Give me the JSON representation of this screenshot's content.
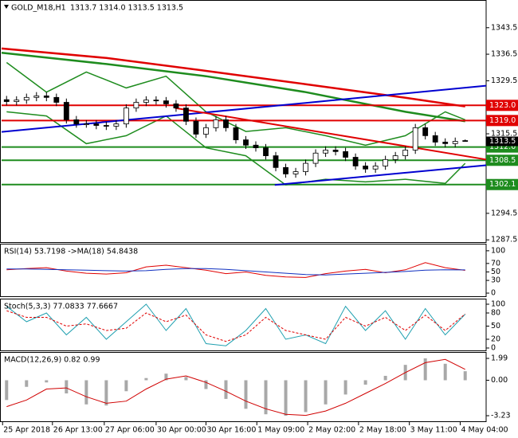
{
  "chart_data": [
    {
      "type": "candlestick",
      "title": "GOLD_M18,H1",
      "quote": "1313.7 1314.0 1313.5 1313.5",
      "xlim": [
        0,
        48.6
      ],
      "xticks": [
        {
          "value": 0.1,
          "label": "25 Apr 2018"
        },
        {
          "value": 5.1,
          "label": "26 Apr 13:00"
        },
        {
          "value": 10.3,
          "label": "27 Apr 06:00"
        },
        {
          "value": 15.5,
          "label": "30 Apr 00:00"
        },
        {
          "value": 20.5,
          "label": "30 Apr 16:00"
        },
        {
          "value": 25.6,
          "label": "1 May 09:00"
        },
        {
          "value": 30.7,
          "label": "2 May 02:00"
        },
        {
          "value": 35.8,
          "label": "2 May 18:00"
        },
        {
          "value": 40.9,
          "label": "3 May 11:00"
        },
        {
          "value": 46.0,
          "label": "4 May 04:00"
        }
      ],
      "ylim": [
        1286.7,
        1350.6
      ],
      "yticks": [
        1343.5,
        1336.5,
        1329.5,
        1315.5,
        1294.5,
        1287.5
      ],
      "open": [
        1324.5,
        1324.0,
        1324.4,
        1325.1,
        1325.5,
        1325.1,
        1323.8,
        1319.2,
        1318.1,
        1318.1,
        1317.7,
        1317.5,
        1318.1,
        1322.3,
        1323.8,
        1324.4,
        1324.2,
        1323.4,
        1322.3,
        1318.8,
        1315.4,
        1317.1,
        1319.2,
        1317.1,
        1313.9,
        1312.5,
        1311.8,
        1309.7,
        1306.6,
        1304.9,
        1305.5,
        1307.7,
        1310.4,
        1311.2,
        1310.8,
        1309.3,
        1307.0,
        1306.2,
        1307.0,
        1308.7,
        1309.7,
        1311.2,
        1317.1,
        1315.0,
        1313.3,
        1312.9,
        1313.7
      ],
      "high": [
        1325.5,
        1325.4,
        1326.1,
        1326.5,
        1326.5,
        1326.1,
        1324.8,
        1320.2,
        1319.1,
        1319.1,
        1318.7,
        1319.1,
        1323.3,
        1324.8,
        1325.4,
        1325.4,
        1325.2,
        1324.4,
        1323.3,
        1319.8,
        1318.1,
        1320.2,
        1320.2,
        1318.1,
        1314.9,
        1313.5,
        1312.8,
        1310.7,
        1307.6,
        1306.5,
        1308.7,
        1311.4,
        1312.2,
        1312.2,
        1311.8,
        1310.3,
        1308.0,
        1308.0,
        1309.7,
        1310.7,
        1312.2,
        1318.1,
        1318.1,
        1316.0,
        1314.3,
        1314.5,
        1314.0
      ],
      "low": [
        1323.0,
        1323.0,
        1323.4,
        1324.1,
        1324.1,
        1322.8,
        1318.2,
        1317.1,
        1317.1,
        1316.7,
        1316.5,
        1316.5,
        1317.1,
        1321.3,
        1322.8,
        1323.2,
        1322.4,
        1321.3,
        1317.8,
        1314.4,
        1314.4,
        1316.1,
        1316.1,
        1312.9,
        1311.5,
        1310.8,
        1308.7,
        1305.6,
        1303.9,
        1303.9,
        1304.5,
        1306.7,
        1309.4,
        1309.8,
        1308.3,
        1306.0,
        1305.2,
        1305.2,
        1306.0,
        1307.7,
        1308.7,
        1310.2,
        1314.0,
        1312.3,
        1311.9,
        1311.9,
        1313.5
      ],
      "close": [
        1324.0,
        1324.4,
        1325.1,
        1325.5,
        1325.1,
        1323.8,
        1319.2,
        1318.1,
        1318.1,
        1317.7,
        1317.5,
        1318.1,
        1322.3,
        1323.8,
        1324.4,
        1324.2,
        1323.4,
        1322.3,
        1318.8,
        1315.4,
        1317.1,
        1319.2,
        1317.1,
        1313.9,
        1312.5,
        1311.8,
        1309.7,
        1306.6,
        1304.9,
        1305.5,
        1307.7,
        1310.4,
        1311.2,
        1310.8,
        1309.3,
        1307.0,
        1306.2,
        1307.0,
        1308.7,
        1309.7,
        1311.2,
        1317.1,
        1315.0,
        1313.3,
        1312.9,
        1313.5,
        1313.5
      ],
      "overlays": [
        {
          "color": "#e00000",
          "width": 2.5,
          "x": [
            0,
            10.5,
            20.5,
            30.5,
            40.5,
            46.5
          ],
          "values": [
            1338.0,
            1335.5,
            1332.1,
            1328.6,
            1325.0,
            1322.7
          ]
        },
        {
          "color": "#1e8c1e",
          "width": 2.5,
          "x": [
            0,
            10.5,
            20.5,
            30.5,
            40.5,
            46.5
          ],
          "values": [
            1336.9,
            1333.9,
            1330.7,
            1326.5,
            1321.3,
            1318.8
          ]
        },
        {
          "color": "#1e8c1e",
          "width": 1.5,
          "x": [
            0.5,
            4.5,
            8.5,
            12.5,
            16.5,
            20.5,
            24.5,
            28.5,
            32.5,
            36.5,
            40.5,
            44.5,
            46.5
          ],
          "values": [
            1334.3,
            1326.5,
            1331.8,
            1327.6,
            1330.7,
            1321.3,
            1316.1,
            1317.1,
            1315.0,
            1312.5,
            1315.0,
            1321.3,
            1319.2
          ]
        },
        {
          "color": "#1e8c1e",
          "width": 1.5,
          "x": [
            0.5,
            4.5,
            8.5,
            12.5,
            16.5,
            20.5,
            24.5,
            28.5,
            32.5,
            36.5,
            40.5,
            44.5,
            46.5
          ],
          "values": [
            1321.3,
            1320.2,
            1312.9,
            1315.0,
            1320.2,
            1311.8,
            1309.7,
            1302.0,
            1303.5,
            1302.8,
            1303.5,
            1302.4,
            1307.7
          ]
        }
      ],
      "trendlines": [
        {
          "color": "#0000d0",
          "x": [
            0,
            48.6
          ],
          "values": [
            1316.0,
            1328.2
          ]
        },
        {
          "color": "#0000d0",
          "x": [
            27.4,
            48.6
          ],
          "values": [
            1302.0,
            1307.2
          ]
        },
        {
          "color": "#e00000",
          "x": [
            17.4,
            48.6
          ],
          "values": [
            1322.3,
            1308.7
          ]
        }
      ],
      "levels": [
        {
          "value": 1323,
          "label": "1323.0",
          "color": "#e00000"
        },
        {
          "value": 1319,
          "label": "1319.0",
          "color": "#e00000"
        },
        {
          "value": 1312,
          "label": "1312.0",
          "color": "#1e8c1e"
        },
        {
          "value": 1308.5,
          "label": "1308.5",
          "color": "#1e8c1e"
        },
        {
          "value": 1302.1,
          "label": "1302.1",
          "color": "#1e8c1e"
        }
      ],
      "current_price": 1313.5
    },
    {
      "type": "line",
      "title": "RSI(14) 53.7198 ->MA(18) 54.8438",
      "x": [
        0.5,
        2.5,
        4.5,
        6.5,
        8.5,
        10.5,
        12.5,
        14.5,
        16.5,
        18.5,
        20.5,
        22.5,
        24.5,
        26.5,
        28.5,
        30.5,
        32.5,
        34.5,
        36.5,
        38.5,
        40.5,
        42.5,
        44.5,
        46.5
      ],
      "ylim": [
        -9.3,
        114.8
      ],
      "yticks": [
        100,
        70,
        50,
        30,
        0
      ],
      "series": [
        {
          "color": "#e00000",
          "values": [
            55,
            58,
            60,
            52,
            47,
            45,
            48,
            62,
            66,
            60,
            54,
            46,
            50,
            42,
            38,
            37,
            46,
            52,
            56,
            48,
            55,
            72,
            60,
            53.7198
          ]
        },
        {
          "color": "#1030c0",
          "values": [
            57,
            57,
            56,
            55,
            54,
            53,
            52,
            53,
            56,
            58,
            58,
            56,
            53,
            50,
            47,
            44,
            43,
            45,
            47,
            49,
            51,
            54,
            55,
            54.8438
          ]
        }
      ]
    },
    {
      "type": "line",
      "title": "Stoch(5,3,3) 77.0833 77.6667",
      "x": [
        0.5,
        2.5,
        4.5,
        6.5,
        8.5,
        10.5,
        12.5,
        14.5,
        16.5,
        18.5,
        20.5,
        22.5,
        24.5,
        26.5,
        28.5,
        30.5,
        32.5,
        34.5,
        36.5,
        38.5,
        40.5,
        42.5,
        44.5,
        46.5
      ],
      "ylim": [
        -7.3,
        110.9
      ],
      "yticks": [
        100,
        80,
        50,
        20,
        0
      ],
      "series": [
        {
          "color": "#20a0b0",
          "values": [
            95,
            60,
            80,
            30,
            70,
            20,
            60,
            100,
            40,
            90,
            10,
            5,
            40,
            90,
            20,
            30,
            10,
            95,
            40,
            85,
            20,
            90,
            30,
            77.0833
          ]
        },
        {
          "color": "#e00000",
          "dash": true,
          "values": [
            85,
            70,
            70,
            50,
            55,
            40,
            45,
            80,
            60,
            75,
            30,
            15,
            30,
            70,
            40,
            30,
            20,
            70,
            50,
            70,
            40,
            75,
            40,
            77.6667
          ]
        }
      ]
    },
    {
      "type": "macd",
      "title": "MACD(12,26,9) 0.82 0.99",
      "x": [
        0.5,
        2.5,
        4.5,
        6.5,
        8.5,
        10.5,
        12.5,
        14.5,
        16.5,
        18.5,
        20.5,
        22.5,
        24.5,
        26.5,
        28.5,
        30.5,
        32.5,
        34.5,
        36.5,
        38.5,
        40.5,
        42.5,
        44.5,
        46.5
      ],
      "ylim": [
        -3.81,
        2.5
      ],
      "yticks": [
        1.99,
        {
          "value": 0,
          "label": "0.00"
        },
        -3.23
      ],
      "series": [
        {
          "type": "bar",
          "color": "#a8a8a8",
          "values": [
            -1.8,
            -0.6,
            -0.2,
            -1.2,
            -2.2,
            -2.3,
            -1.0,
            0.2,
            0.6,
            0.3,
            -0.8,
            -1.7,
            -2.6,
            -3.1,
            -3.23,
            -2.9,
            -2.2,
            -1.3,
            -0.4,
            0.4,
            1.4,
            1.99,
            1.5,
            0.82
          ]
        },
        {
          "type": "line",
          "color": "#d00000",
          "values": [
            -2.4,
            -1.8,
            -0.8,
            -0.7,
            -1.5,
            -2.1,
            -1.9,
            -0.8,
            0.1,
            0.4,
            -0.2,
            -1.0,
            -1.9,
            -2.6,
            -3.1,
            -3.2,
            -2.8,
            -2.1,
            -1.2,
            -0.3,
            0.7,
            1.6,
            1.9,
            0.99
          ]
        }
      ]
    }
  ]
}
